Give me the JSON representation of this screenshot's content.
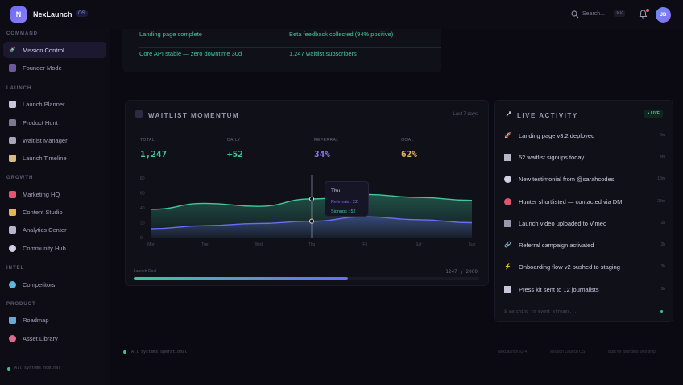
{
  "app": {
    "name": "NexLaunch",
    "badge": "OS",
    "logo_letter": "N"
  },
  "header": {
    "search_placeholder": "Search...",
    "search_shortcut": "⌘K",
    "avatar_initials": "JB"
  },
  "sidebar": {
    "sections": [
      {
        "label": "COMMAND",
        "items": [
          {
            "label": "Mission Control",
            "icon": "rocket-icon",
            "active": true
          },
          {
            "label": "Founder Mode",
            "icon": "person-icon"
          }
        ]
      },
      {
        "label": "LAUNCH",
        "items": [
          {
            "label": "Launch Planner",
            "icon": "clipboard-icon"
          },
          {
            "label": "Product Hunt",
            "icon": "trophy-icon"
          },
          {
            "label": "Waitlist Manager",
            "icon": "list-icon"
          },
          {
            "label": "Launch Timeline",
            "icon": "hourglass-icon"
          }
        ]
      },
      {
        "label": "GROWTH",
        "items": [
          {
            "label": "Marketing HQ",
            "icon": "megaphone-icon"
          },
          {
            "label": "Content Studio",
            "icon": "pen-icon"
          },
          {
            "label": "Analytics Center",
            "icon": "chart-icon"
          },
          {
            "label": "Community Hub",
            "icon": "chat-icon"
          }
        ]
      },
      {
        "label": "INTEL",
        "items": [
          {
            "label": "Competitors",
            "icon": "magnifier-icon"
          }
        ]
      },
      {
        "label": "PRODUCT",
        "items": [
          {
            "label": "Roadmap",
            "icon": "map-icon"
          },
          {
            "label": "Asset Library",
            "icon": "palette-icon"
          }
        ]
      }
    ],
    "status": "All systems nominal"
  },
  "highlights": [
    "Landing page complete",
    "Beta feedback collected (94% positive)",
    "Core API stable — zero downtime 30d",
    "1,247 waitlist subscribers"
  ],
  "waitlist": {
    "title": "WAITLIST MOMENTUM",
    "range": "Last 7 days",
    "stats": [
      {
        "label": "TOTAL",
        "value": "1,247",
        "color": "#3fc89a"
      },
      {
        "label": "DAILY",
        "value": "+52",
        "color": "#3fc89a"
      },
      {
        "label": "REFERRAL",
        "value": "34%",
        "color": "#8b7cf5"
      },
      {
        "label": "GOAL",
        "value": "62%",
        "color": "#e8b45a"
      }
    ],
    "progress_label": "Launch Goal",
    "progress_count": "1247 / 2000",
    "progress_fraction": 0.62,
    "tooltip": {
      "day": "Thu",
      "referrals": "Referrals : 22",
      "signups": "Signups : 52"
    }
  },
  "chart_data": {
    "type": "area",
    "categories": [
      "Mon",
      "Tue",
      "Wed",
      "Thu",
      "Fri",
      "Sat",
      "Sun"
    ],
    "ylim": [
      0,
      80
    ],
    "yticks": [
      0,
      20,
      40,
      60,
      80
    ],
    "series": [
      {
        "name": "Signups",
        "color": "#3fc89a",
        "values": [
          38,
          46,
          42,
          52,
          58,
          54,
          50
        ]
      },
      {
        "name": "Referrals",
        "color": "#6b6df2",
        "values": [
          12,
          16,
          19,
          22,
          28,
          24,
          20
        ]
      }
    ],
    "grid": false
  },
  "activity": {
    "title": "LIVE ACTIVITY",
    "badge": "● LIVE",
    "items": [
      {
        "text": "Landing page v3.2 deployed",
        "icon": "rocket-icon",
        "time": "2m"
      },
      {
        "text": "52 waitlist signups today",
        "icon": "chart-icon",
        "time": "4m"
      },
      {
        "text": "New testimonial from @sarahcodes",
        "icon": "chat-icon",
        "time": "18m"
      },
      {
        "text": "Hunter shortlisted — contacted via DM",
        "icon": "target-icon",
        "time": "23m"
      },
      {
        "text": "Launch video uploaded to Vimeo",
        "icon": "film-icon",
        "time": "1h"
      },
      {
        "text": "Referral campaign activated",
        "icon": "link-icon",
        "time": "2h"
      },
      {
        "text": "Onboarding flow v2 pushed to staging",
        "icon": "bolt-icon",
        "time": "3h"
      },
      {
        "text": "Press kit sent to 12 journalists",
        "icon": "newspaper-icon",
        "time": "5h"
      }
    ],
    "footer": "$ watching to event streams..."
  },
  "footer": {
    "status": "All systems operational",
    "links": [
      "NexLaunch v2.4",
      "Mission Launch OS",
      "Built for founders who ship"
    ]
  }
}
